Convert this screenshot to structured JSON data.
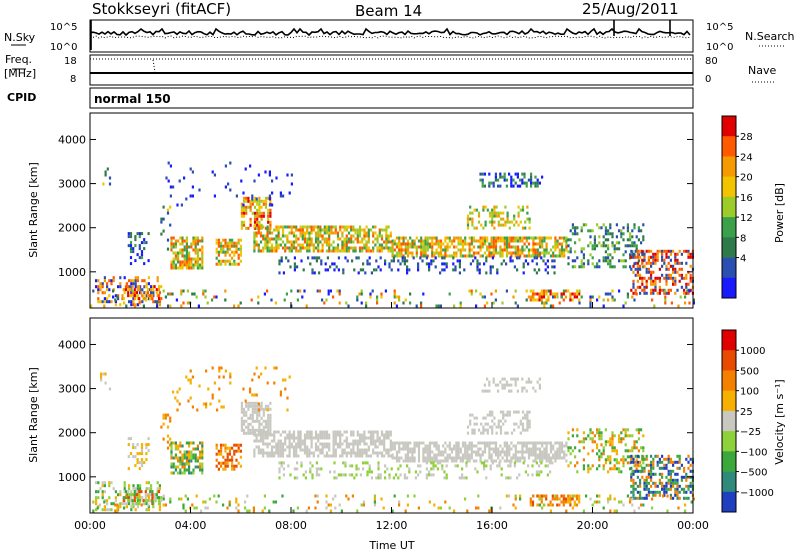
{
  "header": {
    "station": "Stokkseyri (fitACF)",
    "beam": "Beam 14",
    "date": "25/Aug/2011"
  },
  "sky_panel": {
    "left_label": "N.Sky",
    "right_label": "N.Search",
    "y_ticks": [
      "10^5",
      "10^0"
    ]
  },
  "freq_panel": {
    "left_label_1": "Freq.",
    "left_label_2": "[MHz]",
    "right_label": "Nave",
    "left_ticks": [
      18,
      8
    ],
    "right_ticks": [
      80,
      0
    ]
  },
  "cpid_panel": {
    "label": "CPID",
    "mode": "normal 150"
  },
  "chart_data": [
    {
      "type": "heatmap",
      "name": "power",
      "ylabel": "Slant Range [km]",
      "xlabel": "",
      "ylim": [
        180,
        4600
      ],
      "y_ticks": [
        1000,
        2000,
        3000,
        4000
      ],
      "xlim": [
        0,
        24
      ],
      "colorbar": {
        "label": "Power [dB]",
        "ticks": [
          4,
          8,
          12,
          16,
          20,
          24,
          28
        ],
        "colors": [
          "#1a1aff",
          "#2a4fb0",
          "#2e7a4a",
          "#3aa04a",
          "#9ccc2a",
          "#f2c400",
          "#f59a00",
          "#ff5a00",
          "#e00000"
        ]
      }
    },
    {
      "type": "heatmap",
      "name": "velocity",
      "ylabel": "Slant Range [km]",
      "xlabel": "Time UT",
      "ylim": [
        180,
        4600
      ],
      "y_ticks": [
        1000,
        2000,
        3000,
        4000
      ],
      "xlim": [
        0,
        24
      ],
      "x_ticks": [
        "00:00",
        "04:00",
        "08:00",
        "12:00",
        "16:00",
        "20:00",
        "00:00"
      ],
      "colorbar": {
        "label": "Velocity [m s⁻¹]",
        "ticks": [
          "1000",
          "500",
          "100",
          "25",
          "−25",
          "−100",
          "−500",
          "−1000"
        ],
        "colors": [
          "#1f3fbf",
          "#2f8a7a",
          "#3aa83a",
          "#8fd13a",
          "#c8c8c0",
          "#f5b000",
          "#f58000",
          "#e84a00",
          "#e00000"
        ]
      }
    }
  ]
}
